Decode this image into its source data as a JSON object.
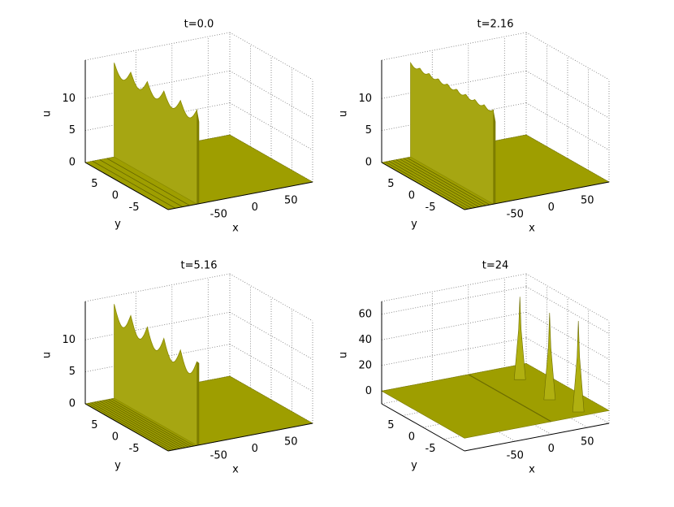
{
  "chart_data": [
    {
      "type": "surface3d",
      "title": "t=0.0",
      "xlabel": "x",
      "ylabel": "y",
      "zlabel": "u",
      "xlim": [
        -120,
        80
      ],
      "ylim": [
        -10,
        10
      ],
      "zlim": [
        0,
        16
      ],
      "xticks": [
        -50,
        0,
        50
      ],
      "yticks": [
        -5,
        0,
        5
      ],
      "zticks": [
        0,
        5,
        10
      ],
      "grid": true,
      "color": "#9e9e00"
    },
    {
      "type": "surface3d",
      "title": "t=2.16",
      "xlabel": "x",
      "ylabel": "y",
      "zlabel": "u",
      "xlim": [
        -120,
        80
      ],
      "ylim": [
        -10,
        10
      ],
      "zlim": [
        0,
        16
      ],
      "xticks": [
        -50,
        0,
        50
      ],
      "yticks": [
        -5,
        0,
        5
      ],
      "zticks": [
        0,
        5,
        10
      ],
      "grid": true,
      "color": "#9e9e00"
    },
    {
      "type": "surface3d",
      "title": "t=5.16",
      "xlabel": "x",
      "ylabel": "y",
      "zlabel": "u",
      "xlim": [
        -120,
        80
      ],
      "ylim": [
        -10,
        10
      ],
      "zlim": [
        0,
        16
      ],
      "xticks": [
        -50,
        0,
        50
      ],
      "yticks": [
        -5,
        0,
        5
      ],
      "zticks": [
        0,
        5,
        10
      ],
      "grid": true,
      "color": "#9e9e00"
    },
    {
      "type": "surface3d",
      "title": "t=24",
      "xlabel": "x",
      "ylabel": "y",
      "zlabel": "u",
      "xlim": [
        -120,
        80
      ],
      "ylim": [
        -10,
        10
      ],
      "zlim": [
        -10,
        70
      ],
      "xticks": [
        -50,
        0,
        50
      ],
      "yticks": [
        -5,
        0,
        5
      ],
      "zticks": [
        0,
        20,
        40,
        60
      ],
      "grid": true,
      "color": "#9e9e00"
    }
  ]
}
